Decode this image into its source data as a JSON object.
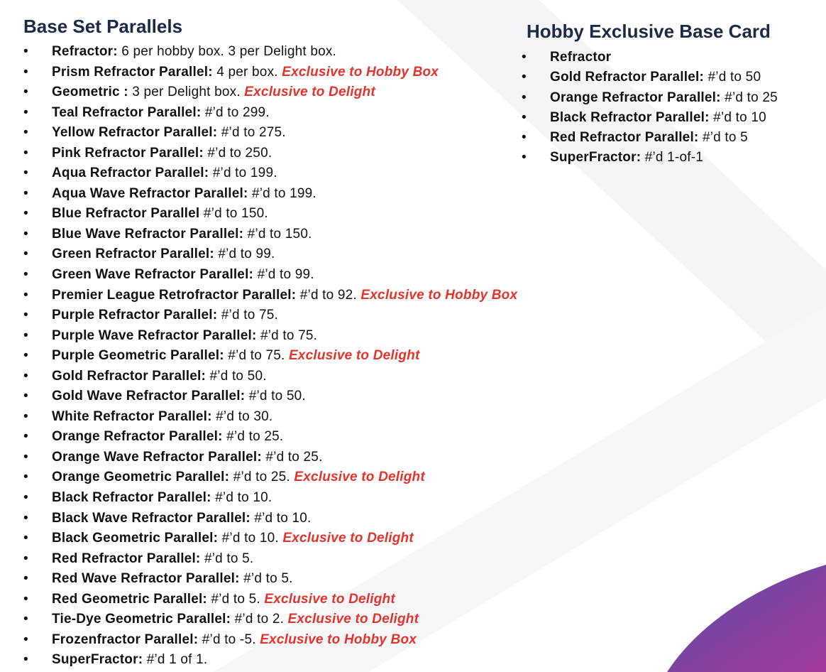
{
  "left": {
    "title": "Base Set Parallels",
    "items": [
      {
        "name": "Refractor:",
        "text": "6 per hobby box. 3 per Delight box."
      },
      {
        "name": "Prism Refractor Parallel:",
        "text": "4 per box.",
        "note": "Exclusive to Hobby Box"
      },
      {
        "name": "Geometric :",
        "text": "3 per Delight box.",
        "note": "Exclusive to Delight"
      },
      {
        "name": "Teal Refractor Parallel:",
        "text": "#’d to 299."
      },
      {
        "name": "Yellow Refractor Parallel:",
        "text": "#’d to 275."
      },
      {
        "name": "Pink Refractor Parallel:",
        "text": "#’d to 250."
      },
      {
        "name": "Aqua Refractor Parallel:",
        "text": "#’d to 199."
      },
      {
        "name": "Aqua Wave Refractor Parallel:",
        "text": "#’d to 199."
      },
      {
        "name": "Blue Refractor Parallel",
        "text": "#’d to 150."
      },
      {
        "name": "Blue Wave Refractor Parallel:",
        "text": "#’d to 150."
      },
      {
        "name": "Green Refractor Parallel:",
        "text": "#’d to 99."
      },
      {
        "name": "Green Wave Refractor Parallel:",
        "text": "#’d to 99."
      },
      {
        "name": "Premier League Retrofractor Parallel:",
        "text": "#’d to 92.",
        "note": "Exclusive to Hobby Box"
      },
      {
        "name": "Purple Refractor Parallel:",
        "text": "#’d to 75."
      },
      {
        "name": "Purple Wave Refractor Parallel:",
        "text": "#’d to 75."
      },
      {
        "name": "Purple Geometric Parallel:",
        "text": "#’d to 75.",
        "note": "Exclusive to Delight"
      },
      {
        "name": "Gold Refractor Parallel:",
        "text": "#’d to 50."
      },
      {
        "name": "Gold Wave Refractor Parallel:",
        "text": "#’d to 50."
      },
      {
        "name": "White Refractor Parallel:",
        "text": "#’d to 30."
      },
      {
        "name": "Orange Refractor Parallel:",
        "text": "#’d to 25."
      },
      {
        "name": "Orange Wave Refractor Parallel:",
        "text": "#’d to 25."
      },
      {
        "name": "Orange Geometric Parallel:",
        "text": "#’d to 25.",
        "note": "Exclusive to Delight"
      },
      {
        "name": "Black Refractor Parallel:",
        "text": "#’d to 10."
      },
      {
        "name": "Black Wave Refractor Parallel:",
        "text": "#’d to 10."
      },
      {
        "name": "Black Geometric Parallel:",
        "text": "#’d to 10.",
        "note": "Exclusive to Delight"
      },
      {
        "name": "Red Refractor Parallel:",
        "text": "#’d to 5."
      },
      {
        "name": "Red Wave Refractor Parallel:",
        "text": "#’d to 5."
      },
      {
        "name": "Red Geometric Parallel:",
        "text": "#’d to 5.",
        "note": "Exclusive to Delight"
      },
      {
        "name": "Tie-Dye Geometric Parallel:",
        "text": "#’d to 2.",
        "note": "Exclusive to Delight"
      },
      {
        "name": "Frozenfractor Parallel:",
        "text": "#’d to -5.",
        "note": "Exclusive to Hobby Box"
      },
      {
        "name": "SuperFractor:",
        "text": "#’d 1 of 1."
      }
    ]
  },
  "right": {
    "title": "Hobby Exclusive Base Card",
    "items": [
      {
        "name": "Refractor"
      },
      {
        "name": "Gold Refractor Parallel:",
        "text": "#’d to 50"
      },
      {
        "name": "Orange Refractor Parallel:",
        "text": "#’d to 25"
      },
      {
        "name": "Black Refractor Parallel:",
        "text": "#’d to 10"
      },
      {
        "name": "Red Refractor Parallel:",
        "text": "#’d to 5"
      },
      {
        "name": "SuperFractor:",
        "text": "#’d 1-of-1"
      }
    ]
  }
}
